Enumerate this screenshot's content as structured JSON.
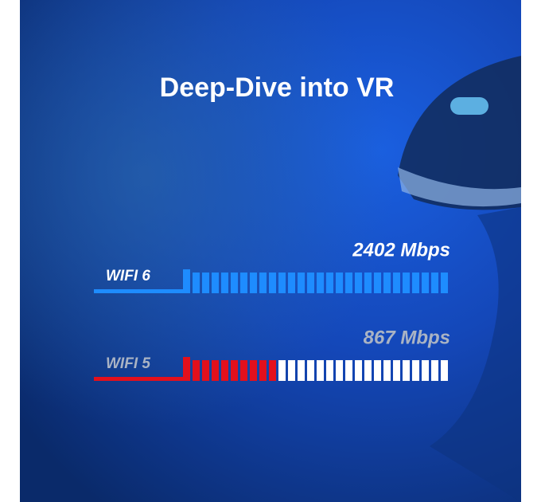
{
  "chart_data": {
    "type": "segmented-bar",
    "title": "Deep-Dive into VR",
    "categories": [
      "WIFI 6",
      "WIFI 5"
    ],
    "values": [
      2402,
      867
    ],
    "value_labels": [
      "2402 Mbps",
      "867 Mbps"
    ],
    "colors": [
      "#1e8cff",
      "#e3101c"
    ],
    "label_colors": [
      "#ffffff",
      "#a9b3c4"
    ],
    "xlim": [
      0,
      2402
    ]
  }
}
